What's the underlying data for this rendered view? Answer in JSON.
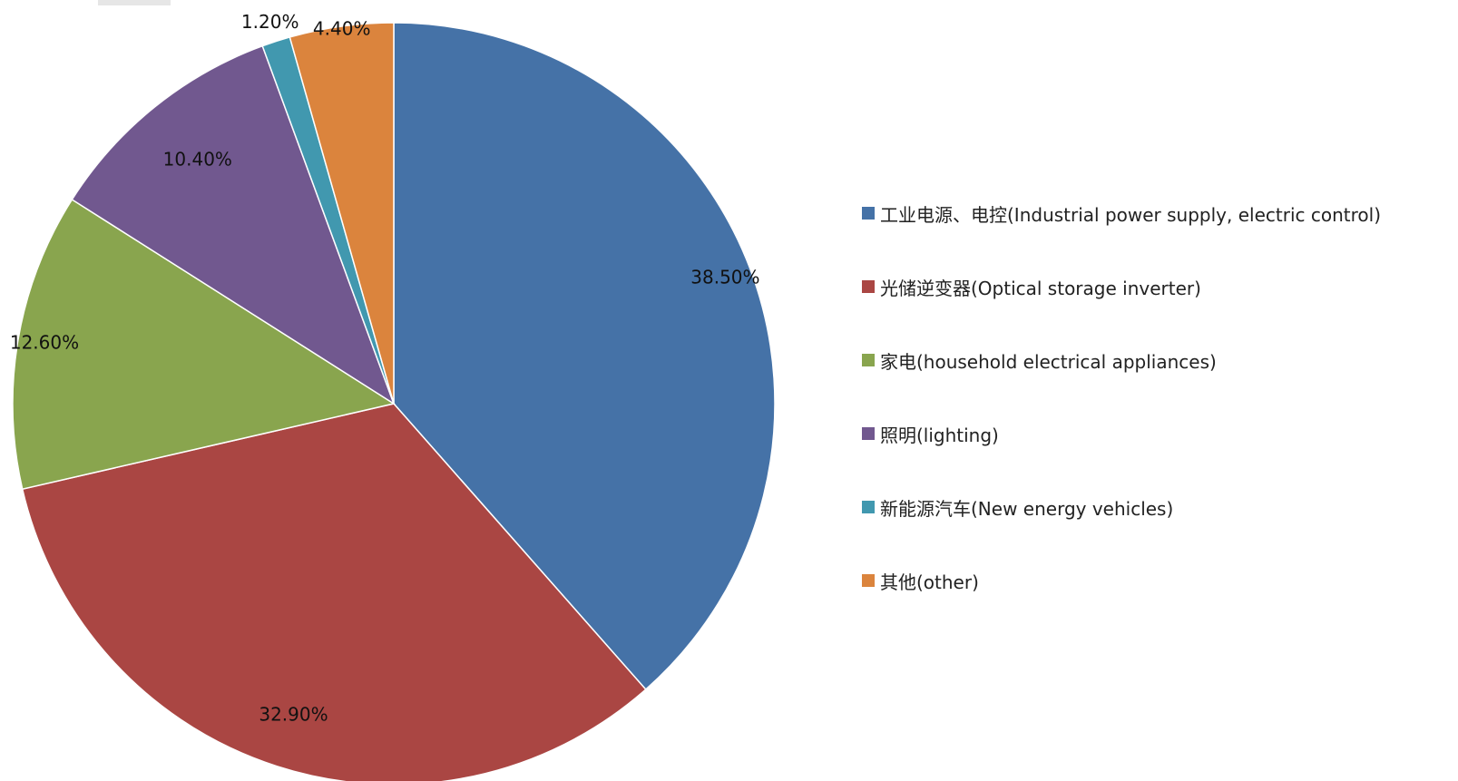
{
  "chart_data": {
    "type": "pie",
    "categories": [
      "工业电源、电控(Industrial power supply, electric control)",
      "光储逆变器(Optical storage inverter)",
      "家电(household electrical appliances)",
      "照明(lighting)",
      "新能源汽车(New energy vehicles)",
      "其他(other)"
    ],
    "values": [
      38.5,
      32.9,
      12.6,
      10.4,
      1.2,
      4.4
    ],
    "labels": [
      "38.50%",
      "32.90%",
      "12.60%",
      "10.40%",
      "1.20%",
      "4.40%"
    ],
    "colors": [
      "#4572A7",
      "#AA4643",
      "#89A54E",
      "#71588F",
      "#4198AF",
      "#DB843D"
    ],
    "start_angle_deg": 0,
    "direction": "clockwise",
    "legend_position": "right"
  }
}
